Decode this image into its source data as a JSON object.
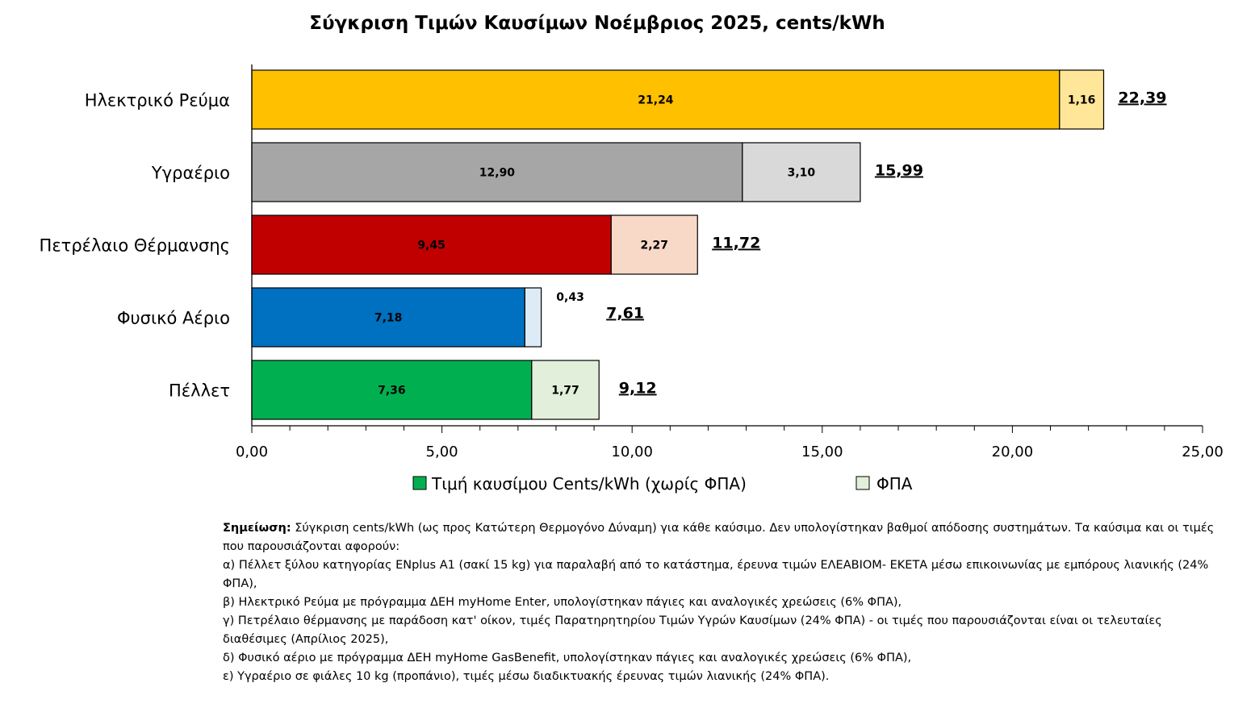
{
  "chart_data": {
    "type": "bar",
    "orientation": "horizontal",
    "stacked": true,
    "title": "Σύγκριση Τιμών Καυσίμων Νοέμβριος 2025, cents/kWh",
    "categories": [
      "Ηλεκτρικό Ρεύμα",
      "Υγραέριο",
      "Πετρέλαιο Θέρμανσης",
      "Φυσικό Αέριο",
      "Πέλλετ"
    ],
    "series": [
      {
        "name": "Τιμή καυσίμου Cents/kWh (χωρίς ΦΠΑ)",
        "values": [
          21.24,
          12.9,
          9.45,
          7.18,
          7.36
        ],
        "labels": [
          "21,24",
          "12,90",
          "9,45",
          "7,18",
          "7,36"
        ],
        "colors": [
          "#FFC000",
          "#A6A6A6",
          "#C00000",
          "#0070C0",
          "#00B050"
        ]
      },
      {
        "name": "ΦΠΑ",
        "values": [
          1.16,
          3.1,
          2.27,
          0.43,
          1.77
        ],
        "labels": [
          "1,16",
          "3,10",
          "2,27",
          "0,43",
          "1,77"
        ],
        "colors": [
          "#FFE699",
          "#D9D9D9",
          "#F8D9C7",
          "#DDEBF7",
          "#E2EFDA"
        ]
      }
    ],
    "totals": [
      "22,39",
      "15,99",
      "11,72",
      "7,61",
      "9,12"
    ],
    "xlim": [
      0,
      25
    ],
    "x_ticks": [
      "0,00",
      "5,00",
      "10,00",
      "15,00",
      "20,00",
      "25,00"
    ],
    "legend": {
      "placement": "bottom",
      "items": [
        {
          "label": "Τιμή καυσίμου Cents/kWh (χωρίς ΦΠΑ)",
          "color": "#00B050"
        },
        {
          "label": "ΦΠΑ",
          "color": "#E2EFDA"
        }
      ]
    }
  },
  "note": {
    "heading": "Σημείωση:",
    "intro": " Σύγκριση cents/kWh (ως προς Κατώτερη Θερμογόνο Δύναμη) για κάθε καύσιμο. Δεν υπολογίστηκαν βαθμοί απόδοσης συστημάτων. Τα καύσιμα και οι τιμές που παρουσιάζονται αφορούν:",
    "items": [
      "α) Πέλλετ ξύλου κατηγορίας ENplus A1 (σακί 15 kg) για παραλαβή από το κατάστημα, έρευνα τιμών ΕΛΕΑΒΙΟΜ- ΕΚΕΤΑ μέσω  επικοινωνίας με εμπόρους λιανικής (24% ΦΠΑ),",
      "β) Ηλεκτρικό Ρεύμα με πρόγραμμα ΔΕΗ myHome Enter, υπολογίστηκαν πάγιες και αναλογικές χρεώσεις (6% ΦΠΑ),",
      "γ) Πετρέλαιο θέρμανσης με παράδοση κατ' οίκον, τιμές Παρατηρητηρίου Τιμών Υγρών Καυσίμων (24% ΦΠΑ) - οι τιμές που παρουσιάζονται είναι οι τελευταίες διαθέσιμες (Απρίλιος 2025),",
      "δ) Φυσικό αέριο με πρόγραμμα ΔΕΗ myHome GasBenefit, υπολογίστηκαν πάγιες και αναλογικές χρεώσεις (6% ΦΠΑ),",
      "ε) Υγραέριο σε φιάλες 10 kg (προπάνιο), τιμές μέσω διαδικτυακής έρευνας τιμών λιανικής (24% ΦΠΑ)."
    ]
  }
}
